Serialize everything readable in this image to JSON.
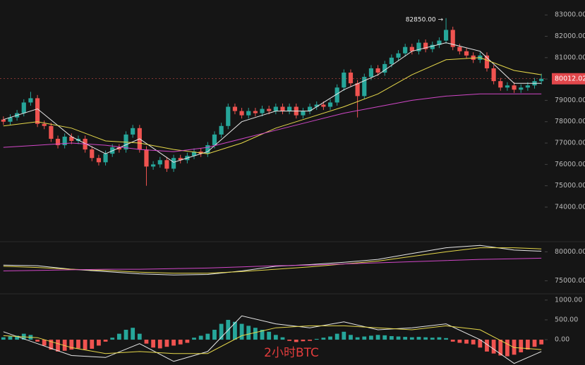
{
  "chart_data": [
    {
      "type": "candlestick",
      "up_color": "#26a69a",
      "down_color": "#ef5350",
      "categories": [
        null,
        null,
        null,
        null,
        null,
        null,
        null,
        null,
        null,
        null,
        null,
        null,
        null,
        null,
        null,
        null,
        null,
        null,
        null,
        null,
        null,
        null,
        null,
        null,
        null,
        null,
        null,
        null,
        null,
        null,
        null,
        null,
        null,
        null,
        null,
        null,
        null,
        null,
        null,
        null,
        null,
        null,
        null,
        null,
        null,
        null,
        null,
        null,
        null,
        null,
        null,
        null,
        null,
        null,
        null,
        null,
        null,
        null,
        null,
        null,
        null,
        null,
        null,
        null,
        null,
        null,
        null,
        null,
        null,
        null,
        null,
        null,
        null,
        null,
        null,
        null,
        null,
        null,
        null,
        null
      ],
      "open": [
        78100,
        78000,
        78200,
        78400,
        78900,
        79100,
        77900,
        77800,
        77200,
        76900,
        77300,
        77100,
        77200,
        76700,
        76300,
        76100,
        76500,
        76800,
        76700,
        77400,
        77700,
        76700,
        75900,
        76000,
        76200,
        75800,
        76300,
        76200,
        76400,
        76600,
        76500,
        76900,
        77400,
        77800,
        78700,
        78500,
        78300,
        78500,
        78400,
        78600,
        78500,
        78700,
        78500,
        78700,
        78300,
        78500,
        78700,
        78800,
        78700,
        78900,
        79600,
        80300,
        79800,
        79200,
        80100,
        80500,
        80300,
        80700,
        81000,
        81200,
        81500,
        81300,
        81700,
        81400,
        81600,
        81800,
        82300,
        81500,
        81300,
        81100,
        80900,
        81100,
        80500,
        79900,
        79600,
        79700,
        79500,
        79600,
        79700,
        79900
      ],
      "high": [
        78250,
        78350,
        78550,
        79050,
        79400,
        79250,
        78050,
        77950,
        77350,
        77450,
        77450,
        77350,
        77350,
        76850,
        76450,
        76650,
        76950,
        76950,
        77550,
        77850,
        77850,
        76850,
        76150,
        76350,
        76350,
        76450,
        76450,
        76550,
        76750,
        76750,
        77050,
        77550,
        77950,
        78850,
        78850,
        78650,
        78650,
        78650,
        78750,
        78750,
        78850,
        78850,
        78850,
        78850,
        78650,
        78850,
        78950,
        78950,
        79050,
        79750,
        80450,
        80450,
        79950,
        80250,
        80650,
        80650,
        80850,
        81150,
        81350,
        81650,
        81650,
        81850,
        81850,
        81750,
        81950,
        82850,
        82450,
        81650,
        81450,
        81250,
        81250,
        81250,
        80650,
        80050,
        79850,
        79850,
        79750,
        79850,
        80050,
        80250
      ],
      "low": [
        77850,
        77850,
        78050,
        78250,
        78750,
        77750,
        77650,
        77050,
        76750,
        76750,
        76950,
        76950,
        76550,
        76150,
        75950,
        75950,
        76350,
        76550,
        76550,
        77250,
        76550,
        75000,
        75750,
        75850,
        75650,
        75650,
        76050,
        76050,
        76250,
        76350,
        76350,
        76750,
        77250,
        77650,
        78350,
        78150,
        78150,
        78250,
        78250,
        78350,
        78350,
        78350,
        78350,
        78150,
        78150,
        78350,
        78550,
        78550,
        78550,
        78750,
        79450,
        79650,
        78200,
        79050,
        79950,
        80150,
        80150,
        80550,
        80850,
        81050,
        81150,
        81150,
        81250,
        81250,
        81450,
        81650,
        81350,
        81150,
        80950,
        80750,
        80750,
        80350,
        79750,
        79450,
        79450,
        79350,
        79350,
        79450,
        79550,
        79750
      ],
      "close": [
        78000,
        78200,
        78400,
        78900,
        79100,
        77900,
        77800,
        77200,
        76900,
        77300,
        77100,
        77200,
        76700,
        76300,
        76100,
        76500,
        76800,
        76700,
        77400,
        77700,
        76700,
        75900,
        76000,
        76200,
        75800,
        76300,
        76200,
        76400,
        76600,
        76500,
        76900,
        77400,
        77800,
        78700,
        78500,
        78300,
        78500,
        78400,
        78600,
        78500,
        78700,
        78500,
        78700,
        78300,
        78500,
        78700,
        78800,
        78700,
        78900,
        79600,
        80300,
        79800,
        79200,
        80100,
        80500,
        80300,
        80700,
        81000,
        81200,
        81500,
        81300,
        81700,
        81400,
        81600,
        81800,
        82300,
        81500,
        81300,
        81100,
        80900,
        81100,
        80500,
        79900,
        79600,
        79700,
        79500,
        79600,
        79700,
        79900,
        80012.02
      ],
      "series": [
        {
          "color": "#e8e8e8",
          "x": [
            0,
            5,
            10,
            15,
            20,
            25,
            30,
            35,
            40,
            45,
            50,
            55,
            60,
            65,
            70,
            75,
            79
          ],
          "values": [
            78100,
            78600,
            77300,
            76500,
            77200,
            76100,
            76600,
            78000,
            78500,
            78500,
            79500,
            80200,
            81300,
            81700,
            81300,
            79800,
            79800
          ]
        },
        {
          "color": "#e6d84a",
          "x": [
            0,
            5,
            10,
            15,
            20,
            25,
            30,
            35,
            40,
            45,
            50,
            55,
            60,
            65,
            70,
            75,
            79
          ],
          "values": [
            77800,
            78000,
            77700,
            77100,
            77000,
            76700,
            76500,
            77000,
            77700,
            78200,
            78700,
            79300,
            80200,
            80900,
            81000,
            80400,
            80200
          ]
        },
        {
          "color": "#d147c8",
          "x": [
            0,
            5,
            10,
            15,
            20,
            25,
            30,
            35,
            40,
            45,
            50,
            55,
            60,
            65,
            70,
            75,
            79
          ],
          "values": [
            76800,
            76900,
            77000,
            76900,
            76700,
            76600,
            76800,
            77200,
            77600,
            78000,
            78400,
            78700,
            79000,
            79200,
            79300,
            79300,
            79300
          ]
        }
      ],
      "ylim": [
        72480,
        83700
      ],
      "yticks": [
        {
          "value": 83000,
          "label": "83000.00"
        },
        {
          "value": 82000,
          "label": "82000.00"
        },
        {
          "value": 81000,
          "label": "81000.00"
        },
        {
          "value": 80000,
          "label": "80000.00"
        },
        {
          "value": 79000,
          "label": "79000.00"
        },
        {
          "value": 78000,
          "label": "78000.00"
        },
        {
          "value": 77000,
          "label": "77000.00"
        },
        {
          "value": 76000,
          "label": "76000.00"
        },
        {
          "value": 75000,
          "label": "75000.00"
        },
        {
          "value": 74000,
          "label": "74000.00"
        }
      ],
      "last_price": 80012.02,
      "high_annotation": "82850.00 →"
    },
    {
      "type": "line",
      "series": [
        {
          "color": "#e8e8e8",
          "x": [
            0,
            5,
            10,
            15,
            20,
            25,
            30,
            35,
            40,
            45,
            50,
            55,
            60,
            65,
            70,
            75,
            79
          ],
          "values": [
            77700,
            77600,
            77000,
            76600,
            76200,
            76000,
            76100,
            76700,
            77500,
            77800,
            78200,
            78700,
            79700,
            80700,
            81100,
            80300,
            80100
          ]
        },
        {
          "color": "#e6d84a",
          "x": [
            0,
            5,
            10,
            15,
            20,
            25,
            30,
            35,
            40,
            45,
            50,
            55,
            60,
            65,
            70,
            75,
            79
          ],
          "values": [
            77500,
            77300,
            77000,
            76800,
            76500,
            76300,
            76300,
            76600,
            77000,
            77400,
            77900,
            78400,
            79200,
            80000,
            80700,
            80700,
            80500
          ]
        },
        {
          "color": "#d147c8",
          "x": [
            0,
            5,
            10,
            15,
            20,
            25,
            30,
            35,
            40,
            45,
            50,
            55,
            60,
            65,
            70,
            75,
            79
          ],
          "values": [
            76700,
            76800,
            76900,
            77000,
            77000,
            77100,
            77200,
            77400,
            77600,
            77700,
            77900,
            78100,
            78300,
            78500,
            78700,
            78800,
            78900
          ]
        }
      ],
      "ylim": [
        73000,
        81500
      ],
      "yticks": [
        {
          "value": 80000,
          "label": "80000.00"
        },
        {
          "value": 75000,
          "label": "75000.00"
        }
      ]
    },
    {
      "type": "histogram",
      "up_color": "#26a69a",
      "down_color": "#ef5350",
      "values": [
        60,
        80,
        100,
        150,
        120,
        -50,
        -150,
        -250,
        -300,
        -280,
        -250,
        -220,
        -250,
        -230,
        -150,
        -50,
        50,
        150,
        250,
        300,
        150,
        -100,
        -200,
        -220,
        -180,
        -150,
        -120,
        -80,
        50,
        100,
        150,
        250,
        400,
        500,
        450,
        400,
        350,
        300,
        250,
        200,
        120,
        60,
        -30,
        -60,
        -40,
        -30,
        20,
        50,
        80,
        150,
        200,
        120,
        60,
        80,
        100,
        120,
        110,
        90,
        80,
        70,
        60,
        70,
        60,
        50,
        60,
        40,
        -50,
        -80,
        -100,
        -120,
        -200,
        -300,
        -350,
        -400,
        -420,
        -380,
        -320,
        -250,
        -180,
        -120
      ],
      "series": [
        {
          "color": "#e8e8e8",
          "x": [
            0,
            5,
            10,
            15,
            20,
            25,
            30,
            35,
            40,
            45,
            50,
            55,
            60,
            65,
            70,
            75,
            79
          ],
          "values": [
            200,
            -100,
            -400,
            -450,
            -100,
            -550,
            -300,
            600,
            400,
            300,
            450,
            250,
            300,
            400,
            0,
            -600,
            -300
          ]
        },
        {
          "color": "#e6d84a",
          "x": [
            0,
            5,
            10,
            15,
            20,
            25,
            30,
            35,
            40,
            45,
            50,
            55,
            60,
            65,
            70,
            75,
            79
          ],
          "values": [
            100,
            50,
            -200,
            -350,
            -300,
            -350,
            -350,
            100,
            300,
            350,
            350,
            300,
            250,
            350,
            250,
            -200,
            -250
          ]
        }
      ],
      "ylim": [
        -640,
        1140
      ],
      "yticks": [
        {
          "value": 1000,
          "label": "1000.00"
        },
        {
          "value": 500,
          "label": "500.00"
        },
        {
          "value": 0,
          "label": "0.00"
        }
      ],
      "watermark": "2小时BTC"
    }
  ]
}
